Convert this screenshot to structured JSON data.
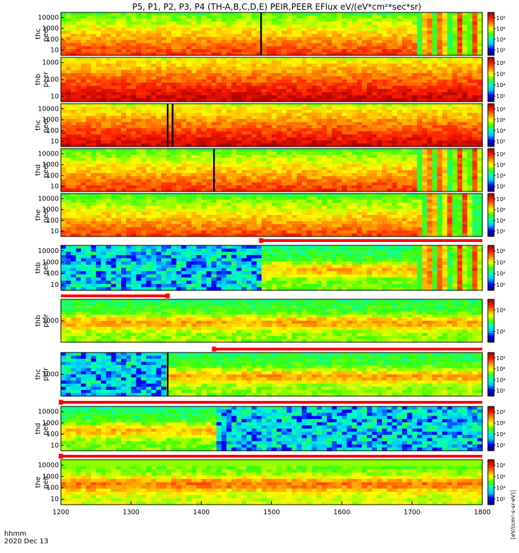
{
  "chart_data": {
    "type": "heatmap",
    "title": "P5, P1, P2, P3, P4 (TH-A,B,C,D,E) PEIR,PEER EFlux eV/(eV*cm²*sec*sr)",
    "xlabel": "hhmm",
    "date_label": "2020 Dec 13",
    "x_range": [
      1200,
      1800
    ],
    "x_ticks": [
      "1200",
      "1300",
      "1400",
      "1500",
      "1600",
      "1700",
      "1800"
    ],
    "colorbar_label": "[eV/(cm²-s-sr-eV)]",
    "colors": {
      "spectrum": [
        "#000080",
        "#0000ff",
        "#00c8ff",
        "#00ffc0",
        "#40ff00",
        "#ffff00",
        "#ff9000",
        "#ff2000",
        "#b00000"
      ],
      "missing_bar": "#ff0000",
      "burst": "#ff2a00"
    },
    "panels": [
      {
        "probe": "thc",
        "species": "peer",
        "ylabel": "thc\npeer",
        "y_ticks": [
          "10",
          "100",
          "1000",
          "10000"
        ],
        "cb_ticks": [
          "10²",
          "10⁴",
          "10⁶",
          "10⁸"
        ],
        "spikes": [
          1485
        ],
        "burst_start": 1710,
        "burst_lobes": [
          1722,
          1742,
          1768,
          1790
        ],
        "base_level": 0.68
      },
      {
        "probe": "thb",
        "species": "peer",
        "ylabel": "thb\npeer",
        "y_ticks": [
          "10",
          "100",
          "1000"
        ],
        "cb_ticks": [
          "10²",
          "10⁴",
          "10⁶",
          "10⁸"
        ],
        "spikes": [],
        "burst_start": null,
        "burst_lobes": [],
        "base_level": 0.8
      },
      {
        "probe": "thc",
        "species": "peer",
        "ylabel": "thc\npeer",
        "y_ticks": [
          "10",
          "100",
          "1000",
          "10000"
        ],
        "cb_ticks": [
          "10²",
          "10⁴",
          "10⁶",
          "10⁸"
        ],
        "spikes": [
          1352,
          1359
        ],
        "burst_start": null,
        "burst_lobes": [],
        "base_level": 0.78
      },
      {
        "probe": "thd",
        "species": "peer",
        "ylabel": "thd\npeer",
        "y_ticks": [
          "10",
          "100",
          "1000",
          "10000"
        ],
        "cb_ticks": [
          "10²",
          "10⁴",
          "10⁶",
          "10⁸"
        ],
        "spikes": [
          1418
        ],
        "burst_start": 1710,
        "burst_lobes": [
          1722,
          1742,
          1768,
          1790
        ],
        "base_level": 0.68
      },
      {
        "probe": "the",
        "species": "peer",
        "ylabel": "the\npeer",
        "y_ticks": [
          "10",
          "100",
          "1000",
          "10000"
        ],
        "cb_ticks": [
          "10²",
          "10⁴",
          "10⁶",
          "10⁸"
        ],
        "spikes": [],
        "burst_start": 1712,
        "burst_lobes": [
          1728,
          1752,
          1776
        ],
        "base_level": 0.66
      },
      {
        "probe": "thb",
        "species": "peir",
        "ylabel": "thb\npeir",
        "y_ticks": [
          "10",
          "100",
          "1000",
          "10000"
        ],
        "cb_ticks": [
          "10⁰",
          "10²",
          "10⁴",
          "10⁶"
        ],
        "spikes": [],
        "burst_start": 1710,
        "burst_lobes": [
          1722,
          1742,
          1768,
          1790
        ],
        "base_level": 0.48,
        "missing_before": 1485
      },
      {
        "probe": "thb",
        "species": "peir",
        "ylabel": "thb\npeir",
        "y_ticks": [
          "1000"
        ],
        "cb_ticks": [
          "10²",
          "10⁴"
        ],
        "spikes": [],
        "burst_start": null,
        "burst_lobes": [],
        "base_level": 0.5
      },
      {
        "probe": "thc",
        "species": "peir",
        "ylabel": "thc\npeir",
        "y_ticks": [
          "1000"
        ],
        "cb_ticks": [
          "10²",
          "10⁴",
          "10⁶",
          "10⁸"
        ],
        "spikes": [
          1352
        ],
        "burst_start": null,
        "burst_lobes": [],
        "base_level": 0.5,
        "missing_before": 1352
      },
      {
        "probe": "thd",
        "species": "peir",
        "ylabel": "thd\npeir",
        "y_ticks": [
          "10",
          "100",
          "1000",
          "10000"
        ],
        "cb_ticks": [
          "10²",
          "10⁴",
          "10⁶",
          "10⁸"
        ],
        "spikes": [],
        "burst_start": 1710,
        "burst_lobes": [
          1722,
          1742,
          1768,
          1790
        ],
        "base_level": 0.48,
        "missing_after": 1418
      },
      {
        "probe": "the",
        "species": "peir",
        "ylabel": "the\npeir",
        "y_ticks": [
          "10",
          "100",
          "1000",
          "10000"
        ],
        "cb_ticks": [
          "10²",
          "10⁴",
          "10⁶",
          "10⁸"
        ],
        "spikes": [],
        "burst_start": null,
        "burst_lobes": [],
        "base_level": 0.55,
        "missing_full": true
      }
    ]
  }
}
